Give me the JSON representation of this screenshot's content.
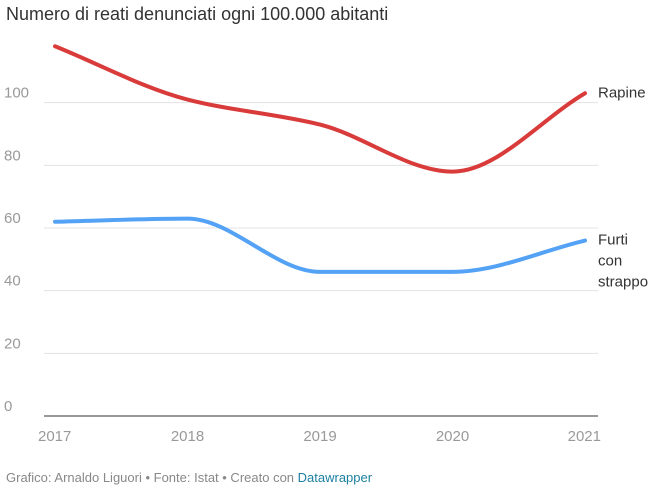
{
  "chart_data": {
    "type": "line",
    "title": "Numero di reati denunciati ogni 100.000 abitanti",
    "x": [
      "2017",
      "2018",
      "2019",
      "2020",
      "2021"
    ],
    "ylim": [
      0,
      120
    ],
    "yticks": [
      0,
      20,
      40,
      60,
      80,
      100
    ],
    "grid": true,
    "legend": "direct labels at line ends",
    "series": [
      {
        "name": "Rapine",
        "label_lines": [
          "Rapine"
        ],
        "color": "#d93b3b",
        "values": [
          118,
          101,
          93,
          78,
          103
        ]
      },
      {
        "name": "Furti con strappo",
        "label_lines": [
          "Furti",
          "con",
          "strappo"
        ],
        "color": "#54a2f5",
        "values": [
          62,
          63,
          46,
          46,
          56
        ]
      }
    ]
  },
  "footer": {
    "credit": "Grafico: Arnaldo Liguori • Fonte: Istat • Creato con ",
    "link": "Datawrapper"
  }
}
